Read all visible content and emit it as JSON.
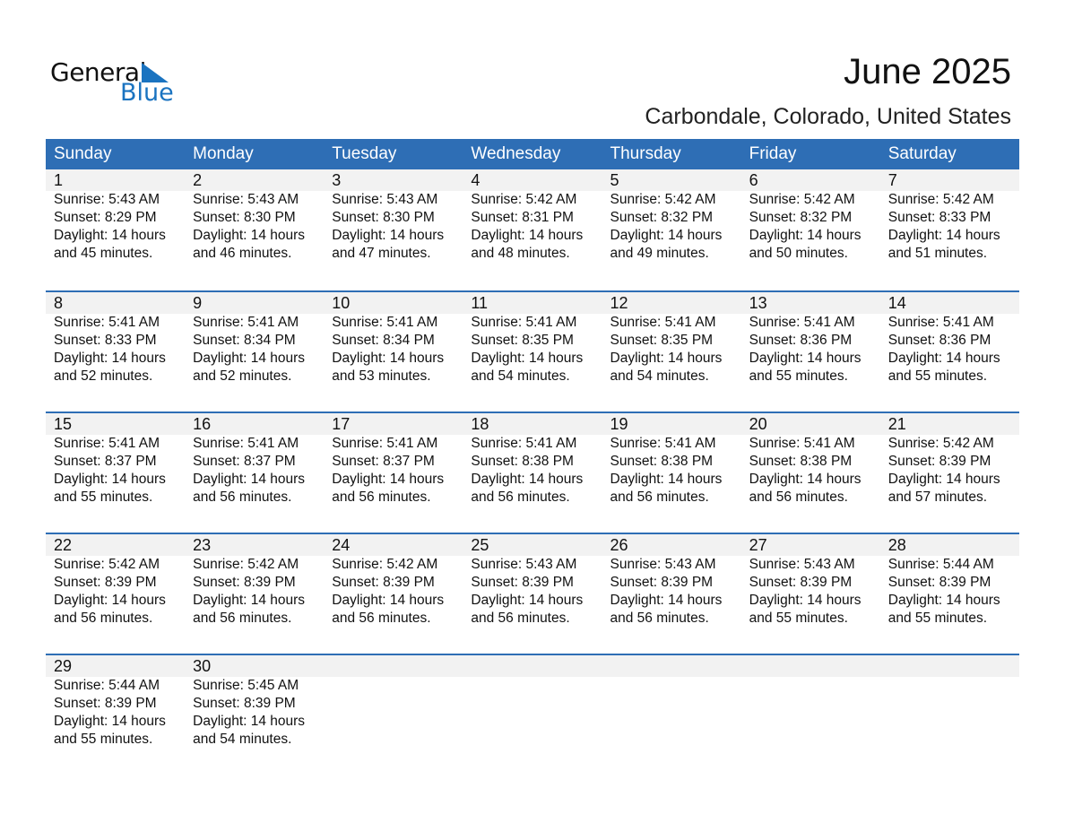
{
  "logo": {
    "line1": "General",
    "line2": "Blue",
    "accent": "#1a73c0"
  },
  "header": {
    "title": "June 2025",
    "subtitle": "Carbondale, Colorado, United States"
  },
  "colors": {
    "header_bg": "#2E6EB5",
    "date_band": "#F2F2F2"
  },
  "weekdays": [
    "Sunday",
    "Monday",
    "Tuesday",
    "Wednesday",
    "Thursday",
    "Friday",
    "Saturday"
  ],
  "weeks": [
    [
      {
        "date": "1",
        "sunrise": "Sunrise: 5:43 AM",
        "sunset": "Sunset: 8:29 PM",
        "daylight": "Daylight: 14 hours",
        "minutes": "and 45 minutes."
      },
      {
        "date": "2",
        "sunrise": "Sunrise: 5:43 AM",
        "sunset": "Sunset: 8:30 PM",
        "daylight": "Daylight: 14 hours",
        "minutes": "and 46 minutes."
      },
      {
        "date": "3",
        "sunrise": "Sunrise: 5:43 AM",
        "sunset": "Sunset: 8:30 PM",
        "daylight": "Daylight: 14 hours",
        "minutes": "and 47 minutes."
      },
      {
        "date": "4",
        "sunrise": "Sunrise: 5:42 AM",
        "sunset": "Sunset: 8:31 PM",
        "daylight": "Daylight: 14 hours",
        "minutes": "and 48 minutes."
      },
      {
        "date": "5",
        "sunrise": "Sunrise: 5:42 AM",
        "sunset": "Sunset: 8:32 PM",
        "daylight": "Daylight: 14 hours",
        "minutes": "and 49 minutes."
      },
      {
        "date": "6",
        "sunrise": "Sunrise: 5:42 AM",
        "sunset": "Sunset: 8:32 PM",
        "daylight": "Daylight: 14 hours",
        "minutes": "and 50 minutes."
      },
      {
        "date": "7",
        "sunrise": "Sunrise: 5:42 AM",
        "sunset": "Sunset: 8:33 PM",
        "daylight": "Daylight: 14 hours",
        "minutes": "and 51 minutes."
      }
    ],
    [
      {
        "date": "8",
        "sunrise": "Sunrise: 5:41 AM",
        "sunset": "Sunset: 8:33 PM",
        "daylight": "Daylight: 14 hours",
        "minutes": "and 52 minutes."
      },
      {
        "date": "9",
        "sunrise": "Sunrise: 5:41 AM",
        "sunset": "Sunset: 8:34 PM",
        "daylight": "Daylight: 14 hours",
        "minutes": "and 52 minutes."
      },
      {
        "date": "10",
        "sunrise": "Sunrise: 5:41 AM",
        "sunset": "Sunset: 8:34 PM",
        "daylight": "Daylight: 14 hours",
        "minutes": "and 53 minutes."
      },
      {
        "date": "11",
        "sunrise": "Sunrise: 5:41 AM",
        "sunset": "Sunset: 8:35 PM",
        "daylight": "Daylight: 14 hours",
        "minutes": "and 54 minutes."
      },
      {
        "date": "12",
        "sunrise": "Sunrise: 5:41 AM",
        "sunset": "Sunset: 8:35 PM",
        "daylight": "Daylight: 14 hours",
        "minutes": "and 54 minutes."
      },
      {
        "date": "13",
        "sunrise": "Sunrise: 5:41 AM",
        "sunset": "Sunset: 8:36 PM",
        "daylight": "Daylight: 14 hours",
        "minutes": "and 55 minutes."
      },
      {
        "date": "14",
        "sunrise": "Sunrise: 5:41 AM",
        "sunset": "Sunset: 8:36 PM",
        "daylight": "Daylight: 14 hours",
        "minutes": "and 55 minutes."
      }
    ],
    [
      {
        "date": "15",
        "sunrise": "Sunrise: 5:41 AM",
        "sunset": "Sunset: 8:37 PM",
        "daylight": "Daylight: 14 hours",
        "minutes": "and 55 minutes."
      },
      {
        "date": "16",
        "sunrise": "Sunrise: 5:41 AM",
        "sunset": "Sunset: 8:37 PM",
        "daylight": "Daylight: 14 hours",
        "minutes": "and 56 minutes."
      },
      {
        "date": "17",
        "sunrise": "Sunrise: 5:41 AM",
        "sunset": "Sunset: 8:37 PM",
        "daylight": "Daylight: 14 hours",
        "minutes": "and 56 minutes."
      },
      {
        "date": "18",
        "sunrise": "Sunrise: 5:41 AM",
        "sunset": "Sunset: 8:38 PM",
        "daylight": "Daylight: 14 hours",
        "minutes": "and 56 minutes."
      },
      {
        "date": "19",
        "sunrise": "Sunrise: 5:41 AM",
        "sunset": "Sunset: 8:38 PM",
        "daylight": "Daylight: 14 hours",
        "minutes": "and 56 minutes."
      },
      {
        "date": "20",
        "sunrise": "Sunrise: 5:41 AM",
        "sunset": "Sunset: 8:38 PM",
        "daylight": "Daylight: 14 hours",
        "minutes": "and 56 minutes."
      },
      {
        "date": "21",
        "sunrise": "Sunrise: 5:42 AM",
        "sunset": "Sunset: 8:39 PM",
        "daylight": "Daylight: 14 hours",
        "minutes": "and 57 minutes."
      }
    ],
    [
      {
        "date": "22",
        "sunrise": "Sunrise: 5:42 AM",
        "sunset": "Sunset: 8:39 PM",
        "daylight": "Daylight: 14 hours",
        "minutes": "and 56 minutes."
      },
      {
        "date": "23",
        "sunrise": "Sunrise: 5:42 AM",
        "sunset": "Sunset: 8:39 PM",
        "daylight": "Daylight: 14 hours",
        "minutes": "and 56 minutes."
      },
      {
        "date": "24",
        "sunrise": "Sunrise: 5:42 AM",
        "sunset": "Sunset: 8:39 PM",
        "daylight": "Daylight: 14 hours",
        "minutes": "and 56 minutes."
      },
      {
        "date": "25",
        "sunrise": "Sunrise: 5:43 AM",
        "sunset": "Sunset: 8:39 PM",
        "daylight": "Daylight: 14 hours",
        "minutes": "and 56 minutes."
      },
      {
        "date": "26",
        "sunrise": "Sunrise: 5:43 AM",
        "sunset": "Sunset: 8:39 PM",
        "daylight": "Daylight: 14 hours",
        "minutes": "and 56 minutes."
      },
      {
        "date": "27",
        "sunrise": "Sunrise: 5:43 AM",
        "sunset": "Sunset: 8:39 PM",
        "daylight": "Daylight: 14 hours",
        "minutes": "and 55 minutes."
      },
      {
        "date": "28",
        "sunrise": "Sunrise: 5:44 AM",
        "sunset": "Sunset: 8:39 PM",
        "daylight": "Daylight: 14 hours",
        "minutes": "and 55 minutes."
      }
    ],
    [
      {
        "date": "29",
        "sunrise": "Sunrise: 5:44 AM",
        "sunset": "Sunset: 8:39 PM",
        "daylight": "Daylight: 14 hours",
        "minutes": "and 55 minutes."
      },
      {
        "date": "30",
        "sunrise": "Sunrise: 5:45 AM",
        "sunset": "Sunset: 8:39 PM",
        "daylight": "Daylight: 14 hours",
        "minutes": "and 54 minutes."
      }
    ]
  ]
}
